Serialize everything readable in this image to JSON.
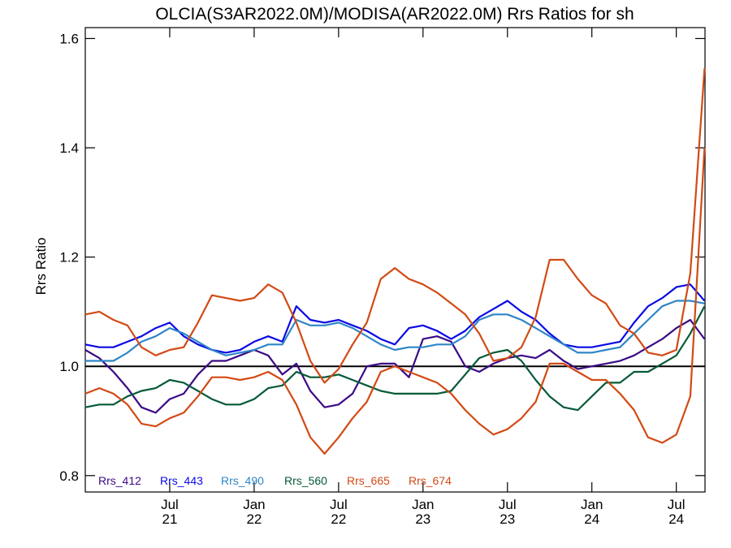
{
  "chart_data": {
    "type": "line",
    "title": "OLCIA(S3AR2022.0M)/MODISA(AR2022.0M)  Rrs Ratios for sh",
    "ylabel": "Rrs Ratio",
    "xlabel": "",
    "ylim": [
      0.77,
      1.62
    ],
    "xlim": [
      2021.0,
      2024.67
    ],
    "yticks": [
      {
        "value": 0.8,
        "label": "0.8"
      },
      {
        "value": 1.0,
        "label": "1.0"
      },
      {
        "value": 1.2,
        "label": "1.2"
      },
      {
        "value": 1.4,
        "label": "1.4"
      },
      {
        "value": 1.6,
        "label": "1.6"
      }
    ],
    "xticks": [
      {
        "value": 2021.5,
        "month": "Jul",
        "year": "21"
      },
      {
        "value": 2022.0,
        "month": "Jan",
        "year": "22"
      },
      {
        "value": 2022.5,
        "month": "Jul",
        "year": "22"
      },
      {
        "value": 2023.0,
        "month": "Jan",
        "year": "23"
      },
      {
        "value": 2023.5,
        "month": "Jul",
        "year": "23"
      },
      {
        "value": 2024.0,
        "month": "Jan",
        "year": "24"
      },
      {
        "value": 2024.5,
        "month": "Jul",
        "year": "24"
      }
    ],
    "reference_line": 1.0,
    "legend_position": "bottom-left",
    "x": [
      2021.0,
      2021.083,
      2021.167,
      2021.25,
      2021.333,
      2021.417,
      2021.5,
      2021.583,
      2021.667,
      2021.75,
      2021.833,
      2021.917,
      2022.0,
      2022.083,
      2022.167,
      2022.25,
      2022.333,
      2022.417,
      2022.5,
      2022.583,
      2022.667,
      2022.75,
      2022.833,
      2022.917,
      2023.0,
      2023.083,
      2023.167,
      2023.25,
      2023.333,
      2023.417,
      2023.5,
      2023.583,
      2023.667,
      2023.75,
      2023.833,
      2023.917,
      2024.0,
      2024.083,
      2024.167,
      2024.25,
      2024.333,
      2024.417,
      2024.5,
      2024.583,
      2024.667
    ],
    "series": [
      {
        "name": "Rrs_412",
        "color": "#3b0a85",
        "values": [
          1.03,
          1.015,
          0.99,
          0.96,
          0.925,
          0.915,
          0.94,
          0.95,
          0.985,
          1.01,
          1.01,
          1.02,
          1.03,
          1.02,
          0.985,
          1.005,
          0.955,
          0.925,
          0.93,
          0.95,
          1.0,
          1.005,
          1.005,
          0.98,
          1.05,
          1.055,
          1.045,
          1.0,
          0.99,
          1.005,
          1.015,
          1.02,
          1.015,
          1.03,
          1.01,
          0.995,
          1.0,
          1.005,
          1.01,
          1.02,
          1.035,
          1.05,
          1.07,
          1.085,
          1.05
        ]
      },
      {
        "name": "Rrs_443",
        "color": "#0a0ae6",
        "values": [
          1.04,
          1.035,
          1.035,
          1.045,
          1.055,
          1.07,
          1.08,
          1.055,
          1.04,
          1.03,
          1.025,
          1.03,
          1.045,
          1.055,
          1.045,
          1.11,
          1.085,
          1.08,
          1.085,
          1.075,
          1.065,
          1.05,
          1.04,
          1.07,
          1.075,
          1.065,
          1.05,
          1.065,
          1.09,
          1.105,
          1.12,
          1.1,
          1.085,
          1.06,
          1.04,
          1.035,
          1.035,
          1.04,
          1.045,
          1.08,
          1.11,
          1.125,
          1.145,
          1.15,
          1.12
        ]
      },
      {
        "name": "Rrs_490",
        "color": "#2e86c8",
        "values": [
          1.01,
          1.01,
          1.01,
          1.025,
          1.045,
          1.055,
          1.07,
          1.06,
          1.045,
          1.03,
          1.02,
          1.025,
          1.03,
          1.04,
          1.04,
          1.085,
          1.075,
          1.075,
          1.08,
          1.07,
          1.055,
          1.04,
          1.03,
          1.035,
          1.035,
          1.04,
          1.04,
          1.055,
          1.085,
          1.095,
          1.095,
          1.085,
          1.07,
          1.055,
          1.04,
          1.025,
          1.025,
          1.03,
          1.035,
          1.06,
          1.085,
          1.11,
          1.12,
          1.12,
          1.115
        ]
      },
      {
        "name": "Rrs_560",
        "color": "#055a36",
        "values": [
          0.925,
          0.93,
          0.93,
          0.945,
          0.955,
          0.96,
          0.975,
          0.97,
          0.955,
          0.94,
          0.93,
          0.93,
          0.94,
          0.96,
          0.965,
          0.99,
          0.98,
          0.98,
          0.985,
          0.975,
          0.965,
          0.955,
          0.95,
          0.95,
          0.95,
          0.95,
          0.955,
          0.985,
          1.015,
          1.025,
          1.03,
          1.01,
          0.975,
          0.945,
          0.925,
          0.92,
          0.945,
          0.97,
          0.97,
          0.99,
          0.99,
          1.005,
          1.02,
          1.06,
          1.11
        ]
      },
      {
        "name": "Rrs_665",
        "color": "#d24a14",
        "values": [
          1.095,
          1.1,
          1.085,
          1.075,
          1.035,
          1.02,
          1.03,
          1.035,
          1.08,
          1.13,
          1.125,
          1.12,
          1.125,
          1.15,
          1.135,
          1.08,
          1.01,
          0.97,
          0.995,
          1.04,
          1.08,
          1.16,
          1.18,
          1.16,
          1.15,
          1.135,
          1.115,
          1.095,
          1.06,
          1.01,
          1.015,
          1.035,
          1.09,
          1.195,
          1.195,
          1.16,
          1.13,
          1.115,
          1.075,
          1.06,
          1.025,
          1.02,
          1.03,
          1.17,
          1.545
        ]
      },
      {
        "name": "Rrs_674",
        "color": "#d24a14",
        "values": [
          0.95,
          0.96,
          0.95,
          0.93,
          0.895,
          0.89,
          0.905,
          0.915,
          0.945,
          0.98,
          0.98,
          0.975,
          0.98,
          0.99,
          0.975,
          0.93,
          0.87,
          0.84,
          0.87,
          0.905,
          0.935,
          0.99,
          1.0,
          0.99,
          0.98,
          0.97,
          0.95,
          0.92,
          0.895,
          0.875,
          0.885,
          0.905,
          0.935,
          1.005,
          1.005,
          0.99,
          0.975,
          0.975,
          0.95,
          0.92,
          0.87,
          0.86,
          0.875,
          0.945,
          1.4
        ]
      }
    ]
  }
}
